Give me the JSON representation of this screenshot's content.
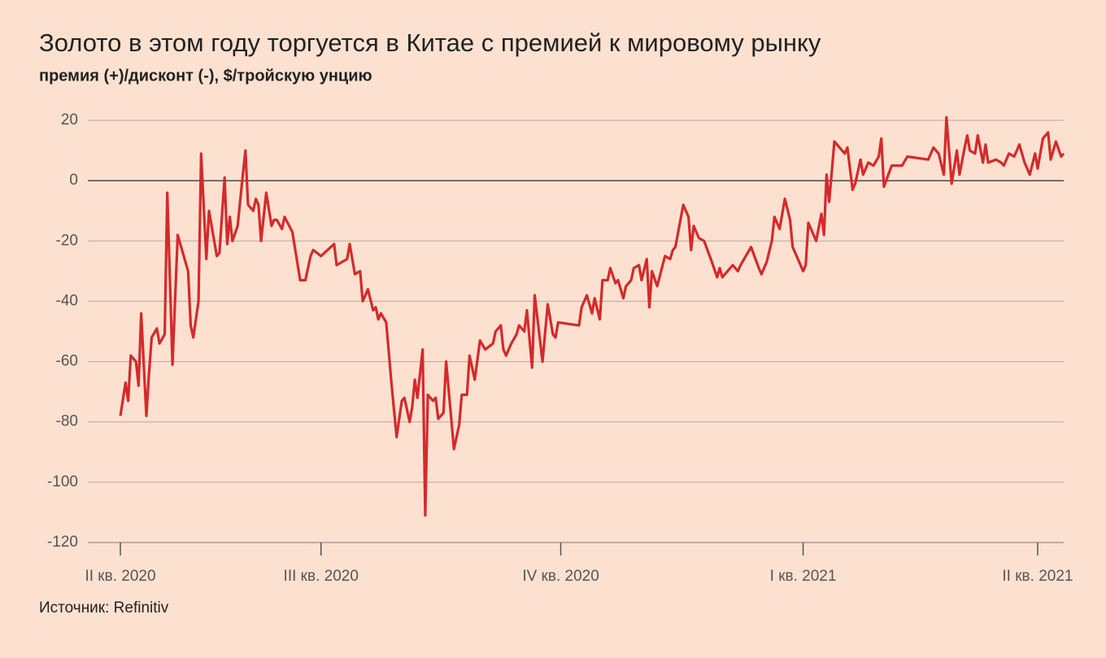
{
  "chart_data": {
    "type": "line",
    "title": "Золото в этом году торгуется в Китае с премией к мировому рынку",
    "subtitle": "премия (+)/дисконт (-), $/тройскую унцию",
    "source": "Источник: Refinitiv",
    "x": [
      0,
      2,
      3,
      4,
      6,
      7,
      8,
      10,
      11,
      12,
      14,
      15,
      17,
      18,
      20,
      22,
      24,
      26,
      27,
      28,
      30,
      31,
      33,
      34,
      35,
      37,
      38,
      40,
      41,
      42,
      43,
      45,
      47,
      48,
      49,
      51,
      52,
      53,
      54,
      56,
      58,
      59,
      60,
      62,
      63,
      66,
      69,
      71,
      73,
      74,
      77,
      82,
      83,
      87,
      88,
      90,
      92,
      93,
      95,
      97,
      98,
      99,
      100,
      102,
      104,
      106,
      108,
      109,
      111,
      112,
      113,
      114,
      116,
      117,
      118,
      120,
      121,
      122,
      124,
      125,
      128,
      130,
      131,
      133,
      134,
      136,
      138,
      140,
      143,
      144,
      146,
      147,
      148,
      150,
      152,
      153,
      155,
      156,
      158,
      159,
      162,
      164,
      166,
      167,
      168,
      176,
      177,
      179,
      181,
      182,
      184,
      185,
      187,
      188,
      190,
      191,
      193,
      194,
      196,
      197,
      199,
      200,
      202,
      203,
      204,
      206,
      209,
      211,
      212,
      213,
      216,
      218,
      219,
      220,
      222,
      224,
      227,
      229,
      230,
      231,
      233,
      235,
      237,
      238,
      240,
      242,
      245,
      246,
      248,
      250,
      251,
      253,
      255,
      257,
      258,
      262,
      263,
      264,
      267,
      269,
      270,
      271,
      272,
      274,
      276,
      278,
      279,
      281,
      282,
      284,
      285,
      287,
      289,
      291,
      292,
      293,
      296,
      300,
      302,
      310,
      312,
      314,
      316,
      317,
      319,
      321,
      322,
      324,
      325,
      326,
      328,
      329,
      331,
      332,
      333,
      336,
      338,
      339,
      341,
      343,
      345,
      347,
      349,
      351,
      352,
      354,
      356,
      357,
      359,
      361,
      362
    ],
    "series": [
      {
        "name": "премия",
        "color": "#d42a2c",
        "values": [
          -78,
          -67,
          -73,
          -58,
          -60,
          -68,
          -44,
          -78,
          -64,
          -52,
          -49,
          -54,
          -51,
          -4,
          -61,
          -18,
          -24,
          -30,
          -48,
          -52,
          -40,
          9,
          -26,
          -10,
          -15,
          -25,
          -24,
          1,
          -21,
          -12,
          -20,
          -15,
          2,
          10,
          -8,
          -10,
          -6,
          -8,
          -20,
          -4,
          -15,
          -13,
          -13,
          -16,
          -12,
          -17,
          -33,
          -33,
          -25,
          -23,
          -25,
          -21,
          -28,
          -26,
          -21,
          -31,
          -30,
          -40,
          -36,
          -43,
          -42,
          -46,
          -44,
          -47,
          -67,
          -85,
          -73,
          -72,
          -80,
          -75,
          -66,
          -72,
          -56,
          -111,
          -71,
          -73,
          -72,
          -79,
          -77,
          -60,
          -89,
          -81,
          -71,
          -71,
          -58,
          -66,
          -53,
          -56,
          -54,
          -50,
          -48,
          -56,
          -58,
          -54,
          -51,
          -48,
          -50,
          -43,
          -62,
          -38,
          -60,
          -41,
          -51,
          -52,
          -47,
          -48,
          -42,
          -38,
          -44,
          -39,
          -46,
          -33,
          -33,
          -29,
          -34,
          -33,
          -39,
          -35,
          -33,
          -29,
          -28,
          -33,
          -26,
          -42,
          -30,
          -35,
          -25,
          -26,
          -23,
          -22,
          -8,
          -12,
          -23,
          -15,
          -19,
          -20,
          -27,
          -32,
          -29,
          -32,
          -30,
          -28,
          -30,
          -28,
          -25,
          -22,
          -29,
          -31,
          -27,
          -20,
          -12,
          -16,
          -6,
          -13,
          -22,
          -30,
          -28,
          -14,
          -20,
          -11,
          -18,
          2,
          -7,
          13,
          11,
          9,
          11,
          -3,
          -1,
          7,
          2,
          6,
          5,
          8,
          14,
          -2,
          5,
          5,
          8,
          7,
          11,
          9,
          2,
          21,
          -1,
          10,
          2,
          11,
          15,
          10,
          9,
          15,
          6,
          12,
          6,
          7,
          6,
          5,
          9,
          8,
          12,
          6,
          2,
          9,
          4,
          14,
          16,
          7,
          13,
          8,
          9
        ]
      }
    ],
    "xlim": [
      0,
      362
    ],
    "xticks": [
      {
        "value": 0,
        "label": "II кв. 2020"
      },
      {
        "value": 77,
        "label": "III кв. 2020"
      },
      {
        "value": 169,
        "label": "IV кв. 2020"
      },
      {
        "value": 262,
        "label": "I кв. 2021"
      },
      {
        "value": 352,
        "label": "II кв. 2021"
      }
    ],
    "ylim": [
      -120,
      20
    ],
    "yticks": [
      20,
      0,
      -20,
      -40,
      -60,
      -80,
      -100,
      -120
    ],
    "grid": true
  }
}
